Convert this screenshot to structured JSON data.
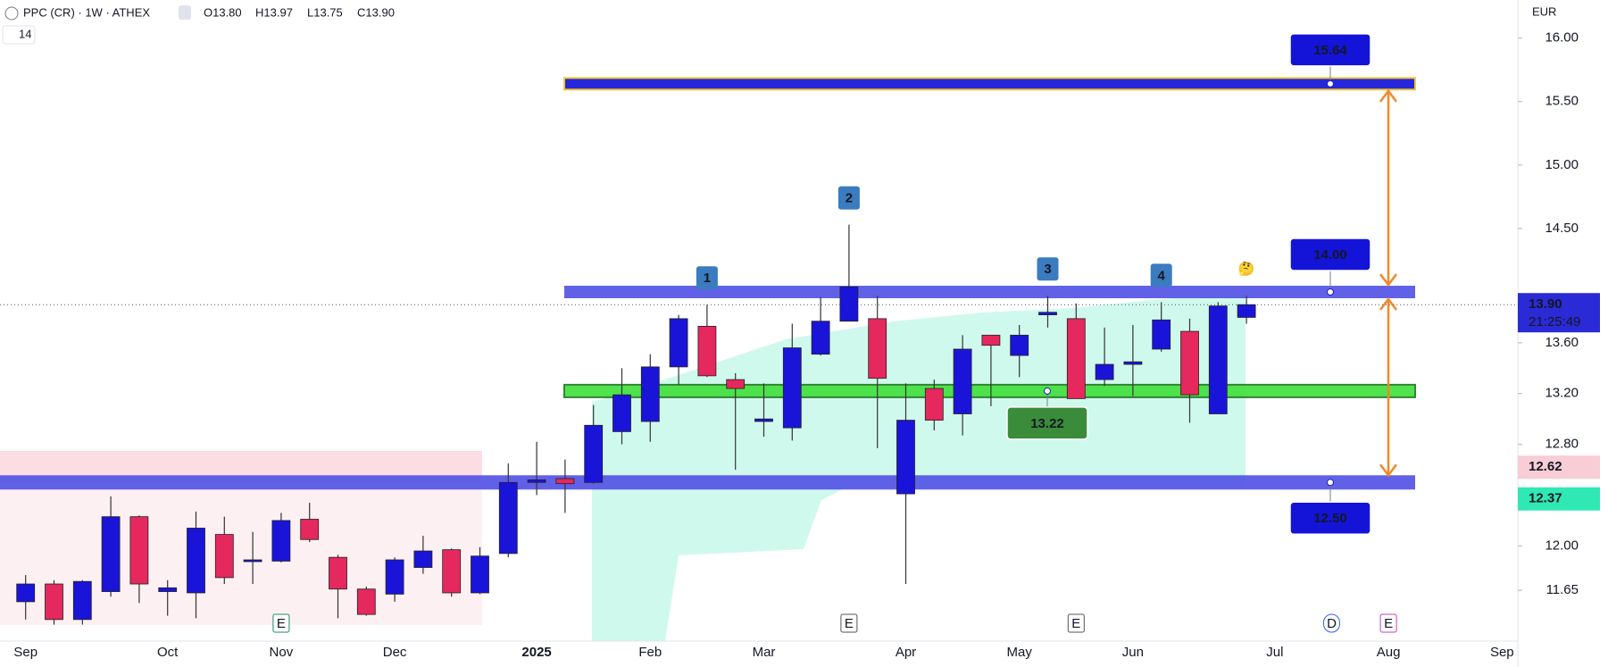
{
  "chart_data": {
    "type": "candlestick",
    "title": "PPC (CR) · 1W · ATHEX",
    "header_values": [
      "O13.80",
      "H13.97",
      "L13.75",
      "C13.90"
    ],
    "indicator_label": "14",
    "currency": "EUR",
    "up_color": "#1a14d9",
    "down_color": "#e5285e",
    "categories": [
      "Sep",
      null,
      null,
      null,
      null,
      "Oct",
      null,
      null,
      null,
      "Nov",
      null,
      null,
      null,
      "Dec",
      null,
      null,
      null,
      null,
      "2025",
      null,
      null,
      null,
      "Feb",
      null,
      null,
      null,
      "Mar",
      null,
      null,
      null,
      null,
      "Apr",
      null,
      null,
      null,
      "May",
      null,
      null,
      null,
      "Jun",
      null,
      null,
      null,
      null,
      "Jul",
      null,
      null,
      null,
      "Aug",
      null,
      null,
      null,
      "Sep"
    ],
    "open": [
      11.56,
      11.7,
      11.42,
      11.64,
      12.23,
      11.64,
      11.63,
      12.09,
      11.88,
      11.88,
      12.21,
      11.91,
      11.66,
      11.62,
      11.83,
      11.97,
      11.63,
      11.94,
      12.5,
      12.53,
      12.5,
      12.9,
      12.98,
      13.41,
      13.73,
      13.31,
      12.98,
      12.93,
      13.51,
      13.77,
      13.79,
      12.41,
      13.24,
      13.04,
      13.66,
      13.5,
      13.82,
      13.79,
      13.31,
      13.43,
      13.55,
      13.69,
      13.04,
      13.8,
      null,
      null,
      null,
      null,
      null,
      null,
      null,
      null,
      null
    ],
    "high": [
      11.77,
      11.73,
      11.73,
      12.39,
      12.24,
      11.73,
      12.27,
      12.23,
      12.11,
      12.26,
      12.34,
      11.93,
      11.68,
      11.91,
      12.08,
      11.98,
      11.99,
      12.65,
      12.82,
      12.68,
      13.11,
      13.4,
      13.51,
      13.82,
      13.9,
      13.36,
      13.28,
      13.75,
      13.96,
      14.53,
      13.97,
      13.28,
      13.31,
      13.66,
      13.66,
      13.74,
      13.97,
      13.91,
      13.72,
      13.74,
      13.92,
      13.79,
      13.92,
      13.97,
      null,
      null,
      null,
      null,
      null,
      null,
      null,
      null,
      null
    ],
    "low": [
      11.42,
      11.38,
      11.38,
      11.6,
      11.55,
      11.45,
      11.43,
      11.7,
      11.7,
      11.87,
      12.03,
      11.43,
      11.45,
      11.56,
      11.78,
      11.6,
      11.62,
      11.91,
      12.4,
      12.26,
      12.49,
      12.8,
      12.82,
      13.27,
      13.33,
      12.6,
      12.86,
      12.83,
      13.5,
      13.77,
      12.77,
      11.7,
      12.91,
      12.87,
      13.1,
      13.33,
      13.72,
      13.16,
      13.26,
      13.18,
      13.53,
      12.97,
      13.04,
      13.75,
      null,
      null,
      null,
      null,
      null,
      null,
      null,
      null,
      null
    ],
    "close": [
      11.7,
      11.42,
      11.72,
      12.23,
      11.7,
      11.67,
      12.14,
      11.75,
      11.89,
      12.2,
      12.05,
      11.66,
      11.46,
      11.89,
      11.96,
      11.63,
      11.92,
      12.5,
      12.52,
      12.49,
      12.95,
      13.19,
      13.41,
      13.79,
      13.34,
      13.24,
      13.0,
      13.56,
      13.77,
      14.04,
      13.32,
      12.99,
      12.99,
      13.55,
      13.58,
      13.66,
      13.84,
      13.16,
      13.43,
      13.45,
      13.78,
      13.19,
      13.89,
      13.9,
      null,
      null,
      null,
      null,
      null,
      null,
      null,
      null,
      null
    ],
    "ylim": [
      11.25,
      16.3
    ],
    "yticks": [
      {
        "value": 16,
        "label": "16.00"
      },
      {
        "value": 15.5,
        "label": "15.50"
      },
      {
        "value": 15,
        "label": "15.00"
      },
      {
        "value": 14.5,
        "label": "14.50"
      },
      {
        "value": 13.6,
        "label": "13.60"
      },
      {
        "value": 13.2,
        "label": "13.20"
      },
      {
        "value": 12.8,
        "label": "12.80"
      },
      {
        "value": 12,
        "label": "12.00"
      },
      11.65
    ],
    "levels": [
      {
        "value": 15.64,
        "color": "#1010d6",
        "label_color": "#1414d8"
      },
      {
        "value": 14,
        "label": "14.00",
        "color": "#5050e4",
        "label_color": "#1414d8"
      },
      {
        "value": 13.22,
        "color": "#3fe03a",
        "label_color": "#3a8c3a"
      },
      {
        "value": 12.5,
        "label": "12.50",
        "color": "#5050e4",
        "label_color": "#1414d8"
      }
    ],
    "price_tags": [
      {
        "value": 13.9,
        "label": "13.90",
        "color": "#2a2ad6"
      },
      {
        "value": 12.62,
        "color": "#f8cdd5"
      },
      {
        "value": 12.37,
        "color": "#30e8b4"
      }
    ],
    "countdown": "21:25:49",
    "annotations": [
      "1",
      "2",
      "3",
      "4",
      "🤔"
    ],
    "events": [
      "E",
      "E",
      "E",
      "D",
      "E"
    ]
  }
}
